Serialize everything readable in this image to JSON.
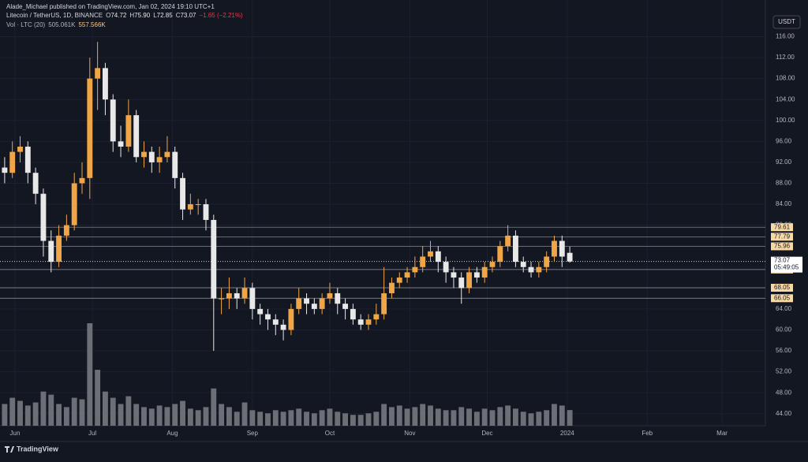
{
  "header": {
    "publisher": "Alade_Michael published on TradingView.com, Jan 02, 2024 19:10 UTC+1"
  },
  "legend": {
    "symbol": "Litecoin / TetherUS, 1D, BINANCE",
    "ohlc_labels": [
      "O",
      "H",
      "L",
      "C"
    ],
    "ohlc": [
      74.72,
      75.9,
      72.85,
      73.07
    ],
    "ohlc_text": [
      "74.72",
      "75.90",
      "72.85",
      "73.07"
    ],
    "change": "−1.65 (−2.21%)",
    "volume_label": "Vol · LTC (20)",
    "volume_values": [
      "505.061K",
      "557.566K"
    ]
  },
  "currency": "USDT",
  "footer": "TradingView",
  "chart_data": {
    "type": "candlestick",
    "x": [
      -4,
      -1,
      2,
      5,
      8,
      11,
      14,
      17,
      20,
      23,
      26,
      29,
      32,
      35,
      38,
      41,
      44,
      47,
      50,
      53,
      56,
      59,
      62,
      65,
      68,
      71,
      74,
      77,
      80,
      83,
      86,
      89,
      92,
      95,
      98,
      101,
      104,
      107,
      110,
      113,
      116,
      119,
      122,
      125,
      128,
      131,
      134,
      137,
      140,
      143,
      146,
      149,
      152,
      155,
      158,
      161,
      164,
      167,
      170,
      173,
      176,
      179,
      182,
      185,
      188,
      191,
      194,
      197,
      200,
      203,
      206,
      209,
      212,
      215
    ],
    "candles": [
      [
        91,
        93,
        88,
        90
      ],
      [
        90,
        96,
        89,
        94
      ],
      [
        94,
        97,
        92,
        95
      ],
      [
        95,
        96,
        88,
        90
      ],
      [
        90,
        91,
        84,
        86
      ],
      [
        86,
        87,
        74,
        77
      ],
      [
        77,
        79,
        71,
        73
      ],
      [
        73,
        80,
        72,
        78
      ],
      [
        78,
        82,
        77,
        80
      ],
      [
        80,
        90,
        79,
        88
      ],
      [
        88,
        92,
        86,
        89
      ],
      [
        89,
        112,
        85,
        108
      ],
      [
        108,
        115,
        102,
        110
      ],
      [
        110,
        111,
        101,
        104
      ],
      [
        104,
        105,
        94,
        96
      ],
      [
        96,
        99,
        93,
        95
      ],
      [
        95,
        104,
        94,
        101
      ],
      [
        101,
        102,
        92,
        93
      ],
      [
        93,
        96,
        91,
        94
      ],
      [
        94,
        95,
        90,
        92
      ],
      [
        92,
        95,
        90,
        93
      ],
      [
        93,
        97,
        92,
        94
      ],
      [
        94,
        95,
        87,
        89
      ],
      [
        89,
        90,
        81,
        83
      ],
      [
        83,
        86,
        82,
        84
      ],
      [
        84,
        85,
        82,
        84
      ],
      [
        84,
        85,
        79,
        81
      ],
      [
        81,
        82,
        56,
        66
      ],
      [
        66,
        68,
        63,
        66
      ],
      [
        66,
        70,
        64,
        67
      ],
      [
        67,
        68,
        64,
        66
      ],
      [
        66,
        70,
        65,
        68
      ],
      [
        68,
        69,
        62,
        64
      ],
      [
        64,
        65,
        61,
        63
      ],
      [
        63,
        64,
        60,
        62
      ],
      [
        62,
        63,
        59,
        61
      ],
      [
        61,
        62,
        58,
        60
      ],
      [
        60,
        65,
        59,
        64
      ],
      [
        64,
        68,
        63,
        66
      ],
      [
        66,
        67,
        63,
        65
      ],
      [
        65,
        66,
        63,
        64
      ],
      [
        64,
        67,
        63,
        66
      ],
      [
        66,
        69,
        65,
        67
      ],
      [
        67,
        68,
        63,
        65
      ],
      [
        65,
        66,
        62,
        64
      ],
      [
        64,
        65,
        61,
        62
      ],
      [
        62,
        63,
        60,
        61
      ],
      [
        61,
        63,
        60,
        62
      ],
      [
        62,
        65,
        61,
        63
      ],
      [
        63,
        72,
        62,
        67
      ],
      [
        67,
        70,
        66,
        69
      ],
      [
        69,
        71,
        68,
        70
      ],
      [
        70,
        72,
        69,
        71
      ],
      [
        71,
        74,
        70,
        72
      ],
      [
        72,
        76,
        71,
        74
      ],
      [
        74,
        77,
        73,
        75
      ],
      [
        75,
        76,
        71,
        73
      ],
      [
        73,
        74,
        69,
        71
      ],
      [
        71,
        72,
        68,
        70
      ],
      [
        70,
        71,
        65,
        68
      ],
      [
        68,
        72,
        67,
        71
      ],
      [
        71,
        72,
        69,
        70
      ],
      [
        70,
        73,
        69,
        72
      ],
      [
        72,
        74,
        71,
        73
      ],
      [
        73,
        77,
        72,
        76
      ],
      [
        76,
        80,
        75,
        78
      ],
      [
        78,
        79,
        72,
        73
      ],
      [
        73,
        74,
        71,
        72
      ],
      [
        72,
        73,
        70,
        71
      ],
      [
        71,
        73,
        70,
        72
      ],
      [
        72,
        75,
        71,
        74
      ],
      [
        74,
        78,
        73,
        77
      ],
      [
        77,
        78,
        72,
        74
      ],
      [
        74.72,
        75.9,
        72.85,
        73.07
      ]
    ],
    "volumes": [
      700,
      900,
      800,
      650,
      750,
      1100,
      1000,
      700,
      600,
      900,
      850,
      3300,
      1800,
      1100,
      900,
      700,
      950,
      700,
      600,
      550,
      650,
      600,
      700,
      800,
      550,
      500,
      600,
      1200,
      700,
      600,
      450,
      750,
      500,
      450,
      400,
      500,
      450,
      500,
      550,
      450,
      400,
      500,
      550,
      450,
      400,
      350,
      350,
      400,
      450,
      700,
      600,
      650,
      550,
      600,
      700,
      650,
      550,
      500,
      500,
      600,
      550,
      450,
      550,
      500,
      600,
      650,
      550,
      450,
      400,
      450,
      500,
      700,
      650,
      505.061
    ],
    "up_color": "#f0a646",
    "down_color": "#e8e8e8",
    "volume_color": "#6d6f76",
    "xlim": [
      -5.8,
      290.8
    ],
    "xticks": [
      {
        "value": 0,
        "label": "Jun"
      },
      {
        "value": 30,
        "label": "Jul"
      },
      {
        "value": 61,
        "label": "Aug"
      },
      {
        "value": 92,
        "label": "Sep"
      },
      {
        "value": 122,
        "label": "Oct"
      },
      {
        "value": 153,
        "label": "Nov"
      },
      {
        "value": 183,
        "label": "Dec"
      },
      {
        "value": 214,
        "label": "2024"
      },
      {
        "value": 245,
        "label": "Feb"
      },
      {
        "value": 274,
        "label": "Mar"
      }
    ],
    "ylim": [
      41.7,
      123.0
    ],
    "yticks": [
      {
        "value": 44,
        "label": "44.00"
      },
      {
        "value": 48,
        "label": "48.00"
      },
      {
        "value": 52,
        "label": "52.00"
      },
      {
        "value": 56,
        "label": "56.00"
      },
      {
        "value": 60,
        "label": "60.00"
      },
      {
        "value": 64,
        "label": "64.00"
      },
      {
        "value": 68,
        "label": "68.00"
      },
      {
        "value": 72,
        "label": "72.00"
      },
      {
        "value": 76,
        "label": "76.00"
      },
      {
        "value": 80,
        "label": "80.00"
      },
      {
        "value": 84,
        "label": "84.00"
      },
      {
        "value": 88,
        "label": "88.00"
      },
      {
        "value": 92,
        "label": "92.00"
      },
      {
        "value": 96,
        "label": "96.00"
      },
      {
        "value": 100,
        "label": "100.00"
      },
      {
        "value": 104,
        "label": "104.00"
      },
      {
        "value": 108,
        "label": "108.00"
      },
      {
        "value": 112,
        "label": "112.00"
      },
      {
        "value": 116,
        "label": "116.00"
      }
    ],
    "levels": [
      79.61,
      77.79,
      75.96,
      71.53,
      68.05,
      66.05
    ],
    "current_price": 73.07,
    "countdown": "05:49:05",
    "grid": true
  }
}
